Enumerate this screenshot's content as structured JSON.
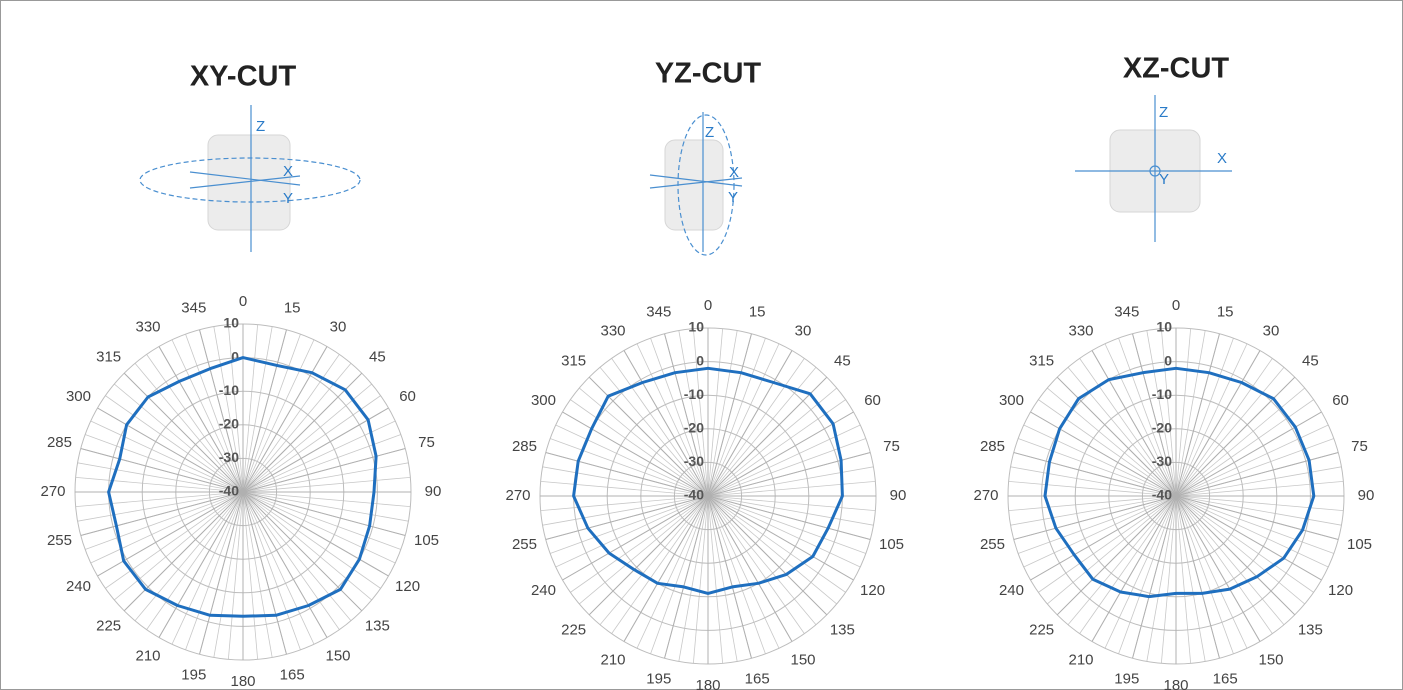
{
  "chart_data": [
    {
      "type": "polar",
      "title": "XY-CUT",
      "color": "#1f6fbf",
      "theta": [
        0,
        15,
        30,
        45,
        60,
        75,
        90,
        105,
        120,
        135,
        150,
        165,
        180,
        195,
        210,
        225,
        240,
        255,
        270,
        285,
        300,
        315,
        330,
        345
      ],
      "values": [
        0,
        -1,
        1,
        3,
        3,
        1,
        -1,
        -1,
        0,
        1,
        -1,
        -2,
        -3,
        -2,
        -1,
        1,
        1,
        -1,
        0,
        -2,
        0,
        0,
        -2,
        -2
      ],
      "thetaticks": [
        0,
        15,
        30,
        45,
        60,
        75,
        90,
        105,
        120,
        135,
        150,
        165,
        180,
        195,
        210,
        225,
        240,
        255,
        270,
        285,
        300,
        315,
        330,
        345
      ],
      "rlim": [
        -40,
        10
      ],
      "rticks": [
        10,
        0,
        -10,
        -20,
        -30,
        -40
      ]
    },
    {
      "type": "polar",
      "title": "YZ-CUT",
      "color": "#1f6fbf",
      "theta": [
        0,
        15,
        30,
        45,
        60,
        75,
        90,
        105,
        120,
        135,
        150,
        165,
        180,
        195,
        210,
        225,
        240,
        255,
        270,
        285,
        300,
        315,
        330,
        345
      ],
      "values": [
        -2,
        -2,
        -1,
        3,
        3,
        1,
        0,
        -3,
        -4,
        -7,
        -10,
        -12,
        -11,
        -12,
        -10,
        -9,
        -6,
        -3,
        0,
        0,
        0,
        2,
        -1,
        -2
      ],
      "thetaticks": [
        0,
        15,
        30,
        45,
        60,
        75,
        90,
        105,
        120,
        135,
        150,
        165,
        180,
        195,
        210,
        225,
        240,
        255,
        270,
        285,
        300,
        315,
        330,
        345
      ],
      "rlim": [
        -40,
        10
      ],
      "rticks": [
        10,
        0,
        -10,
        -20,
        -30,
        -40
      ]
    },
    {
      "type": "polar",
      "title": "XZ-CUT",
      "color": "#1f6fbf",
      "theta": [
        0,
        15,
        30,
        45,
        60,
        75,
        90,
        105,
        120,
        135,
        150,
        165,
        180,
        195,
        210,
        225,
        240,
        255,
        270,
        285,
        300,
        315,
        330,
        345
      ],
      "values": [
        -2,
        -2,
        -1,
        1,
        1,
        1,
        1,
        -1,
        -3,
        -6,
        -8,
        -10,
        -11,
        -9,
        -7,
        -5,
        -5,
        -3,
        -1,
        -1,
        0,
        1,
        0,
        -2
      ],
      "thetaticks": [
        0,
        15,
        30,
        45,
        60,
        75,
        90,
        105,
        120,
        135,
        150,
        165,
        180,
        195,
        210,
        225,
        240,
        255,
        270,
        285,
        300,
        315,
        330,
        345
      ],
      "rlim": [
        -40,
        10
      ],
      "rticks": [
        10,
        0,
        -10,
        -20,
        -30,
        -40
      ]
    }
  ],
  "diagrams": [
    {
      "labels": [
        "Z",
        "X",
        "Y"
      ]
    },
    {
      "labels": [
        "Z",
        "X",
        "Y"
      ]
    },
    {
      "labels": [
        "Z",
        "X",
        "Y"
      ]
    }
  ]
}
